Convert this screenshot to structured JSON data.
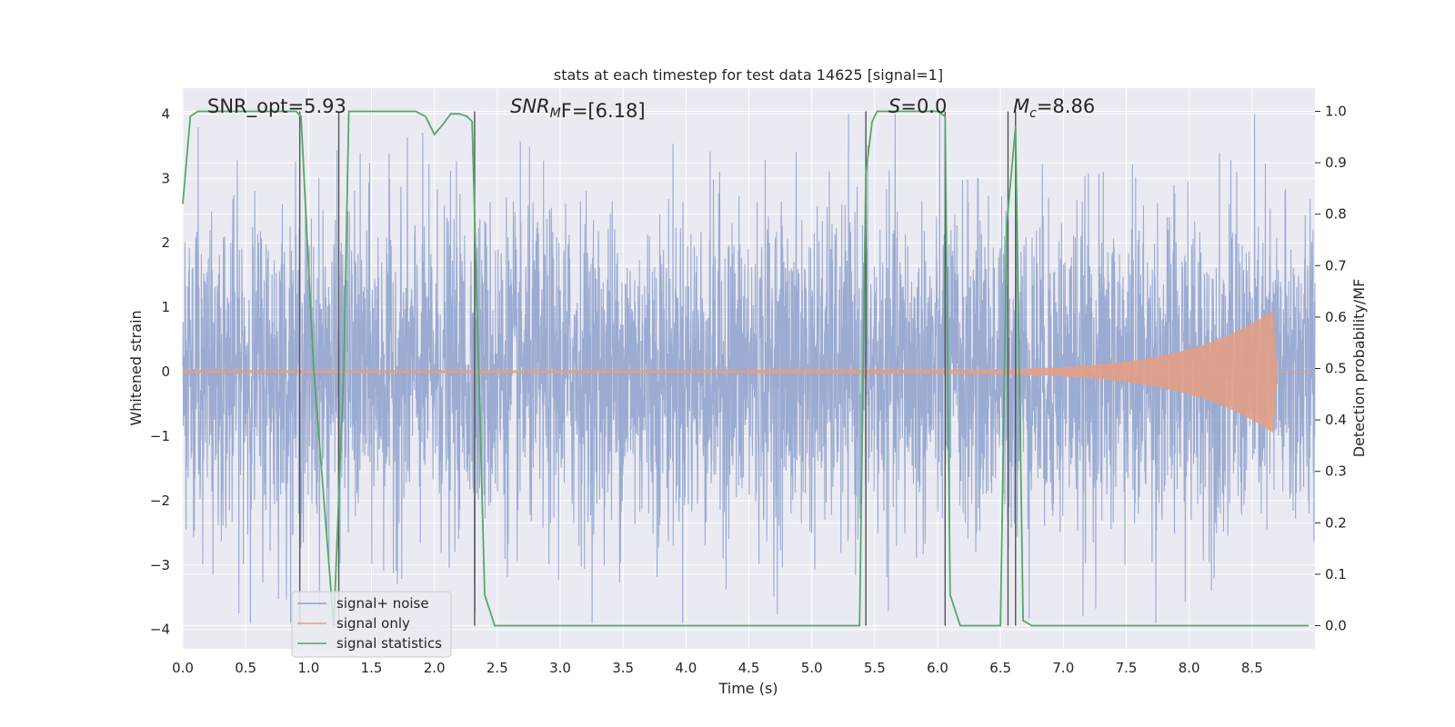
{
  "chart_data": {
    "type": "line",
    "title": "stats at each timestep for test data 14625 [signal=1]",
    "xlabel": "Time (s)",
    "ylabel_left": "Whitened strain",
    "ylabel_right": "Detection probability/MF",
    "xlim": [
      0.0,
      9.0
    ],
    "ylim_left": [
      -4.3,
      4.4
    ],
    "ylim_right": [
      -0.045,
      1.045
    ],
    "x_ticks": [
      "0.0",
      "0.5",
      "1.0",
      "1.5",
      "2.0",
      "2.5",
      "3.0",
      "3.5",
      "4.0",
      "4.5",
      "5.0",
      "5.5",
      "6.0",
      "6.5",
      "7.0",
      "7.5",
      "8.0",
      "8.5"
    ],
    "x_tick_values": [
      0.0,
      0.5,
      1.0,
      1.5,
      2.0,
      2.5,
      3.0,
      3.5,
      4.0,
      4.5,
      5.0,
      5.5,
      6.0,
      6.5,
      7.0,
      7.5,
      8.0,
      8.5
    ],
    "y_left_ticks": [
      "4",
      "3",
      "2",
      "1",
      "0",
      "−1",
      "−2",
      "−3",
      "−4"
    ],
    "y_left_tick_values": [
      4,
      3,
      2,
      1,
      0,
      -1,
      -2,
      -3,
      -4
    ],
    "y_right_ticks": [
      "1.0",
      "0.9",
      "0.8",
      "0.7",
      "0.6",
      "0.5",
      "0.4",
      "0.3",
      "0.2",
      "0.1",
      "0.0"
    ],
    "y_right_tick_values": [
      1.0,
      0.9,
      0.8,
      0.7,
      0.6,
      0.5,
      0.4,
      0.3,
      0.2,
      0.1,
      0.0
    ],
    "grid": true,
    "legend_position": "lower-left",
    "series": [
      {
        "name": "signal+ noise",
        "axis": "left",
        "color": "#8da0cb",
        "kind": "dense noise, sampled 2048 Hz, amplitude roughly within ±4",
        "envelope_extremes": {
          "max": 4.0,
          "min": -3.9
        }
      },
      {
        "name": "signal only",
        "axis": "left",
        "color": "#e29e85",
        "kind": "chirp",
        "amplitude_start": 0.03,
        "amplitude_peak": 0.95,
        "t_start": 4.5,
        "t_peak": 8.67,
        "t_end": 8.7
      },
      {
        "name": "signal statistics",
        "axis": "right",
        "color": "#55a868",
        "x": [
          0.0,
          0.06,
          0.12,
          0.5,
          0.9,
          0.94,
          1.04,
          1.2,
          1.28,
          1.32,
          1.6,
          1.85,
          1.93,
          2.0,
          2.07,
          2.13,
          2.2,
          2.26,
          2.3,
          2.4,
          2.48,
          3.0,
          4.0,
          5.0,
          5.38,
          5.43,
          5.48,
          5.52,
          6.0,
          6.06,
          6.1,
          6.18,
          6.3,
          6.5,
          6.55,
          6.62,
          6.68,
          6.75,
          7.0,
          8.0,
          8.95
        ],
        "y": [
          0.82,
          0.99,
          1.0,
          1.0,
          1.0,
          0.99,
          0.5,
          0.0,
          0.5,
          1.0,
          1.0,
          1.0,
          0.99,
          0.955,
          0.975,
          0.995,
          0.995,
          0.99,
          0.98,
          0.06,
          0.0,
          0.0,
          0.0,
          0.0,
          0.0,
          0.88,
          0.98,
          1.0,
          1.0,
          0.99,
          0.06,
          0.0,
          0.0,
          0.0,
          0.78,
          0.97,
          0.01,
          0.0,
          0.0,
          0.0,
          0.0
        ]
      }
    ],
    "vertical_lines": [
      0.93,
      1.24,
      2.32,
      5.43,
      6.06,
      6.56,
      6.62
    ],
    "vertical_lines_color": "#555555",
    "annotations": {
      "snr_opt": "SNR_opt=5.93",
      "snr_mf_main": "SNR",
      "snr_mf_sub": "M",
      "snr_mf_rest": "F=[6.18]",
      "s_main": "S",
      "s_rest": "=0.0",
      "mc_main": "M",
      "mc_sub": "c",
      "mc_rest": "=8.86"
    },
    "legend": [
      {
        "label": "signal+ noise",
        "color": "#8da0cb"
      },
      {
        "label": "signal only",
        "color": "#e29e85"
      },
      {
        "label": "signal statistics",
        "color": "#55a868"
      }
    ]
  },
  "colors": {
    "plot_background": "#eaeaf2",
    "grid": "#ffffff",
    "text": "#262626"
  }
}
